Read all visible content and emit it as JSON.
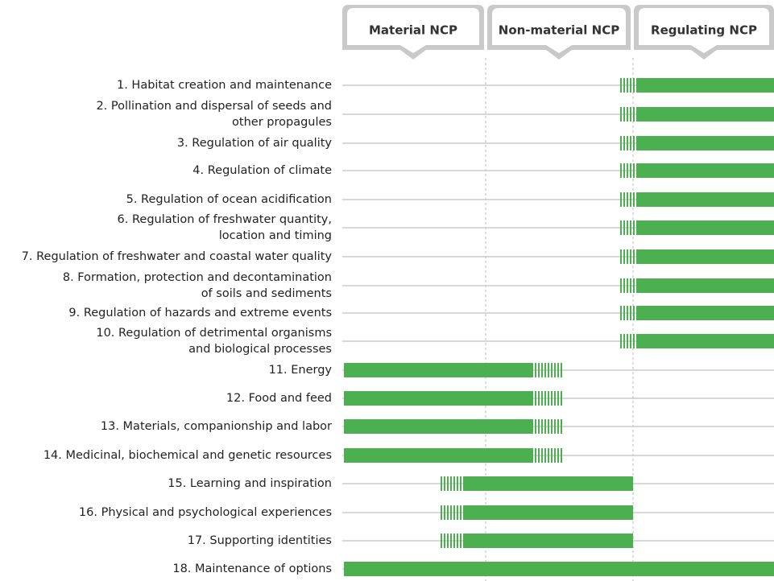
{
  "headers": [
    "Material NCP",
    "Non-material NCP",
    "Regulating NCP"
  ],
  "rows": [
    {
      "lines": [
        "1. Habitat creation and maintenance"
      ]
    },
    {
      "lines": [
        "2. Pollination and dispersal of seeds and",
        "other propagules"
      ]
    },
    {
      "lines": [
        "3. Regulation of air quality"
      ]
    },
    {
      "lines": [
        "4. Regulation of climate"
      ]
    },
    {
      "lines": [
        "5. Regulation of ocean acidification"
      ]
    },
    {
      "lines": [
        "6. Regulation of freshwater quantity,",
        "location and timing"
      ]
    },
    {
      "lines": [
        "7. Regulation of freshwater and coastal water quality"
      ]
    },
    {
      "lines": [
        "8. Formation, protection and decontamination",
        "of soils and sediments"
      ]
    },
    {
      "lines": [
        "9. Regulation of hazards and extreme events"
      ]
    },
    {
      "lines": [
        "10. Regulation of detrimental organisms",
        "and biological processes"
      ]
    },
    {
      "lines": [
        "11. Energy"
      ]
    },
    {
      "lines": [
        "12. Food and feed"
      ]
    },
    {
      "lines": [
        "13. Materials, companionship and labor"
      ]
    },
    {
      "lines": [
        "14. Medicinal, biochemical and genetic resources"
      ]
    },
    {
      "lines": [
        "15. Learning and inspiration"
      ]
    },
    {
      "lines": [
        "16. Physical and psychological experiences"
      ]
    },
    {
      "lines": [
        "17. Supporting identities"
      ]
    },
    {
      "lines": [
        "18. Maintenance of options"
      ]
    }
  ]
}
